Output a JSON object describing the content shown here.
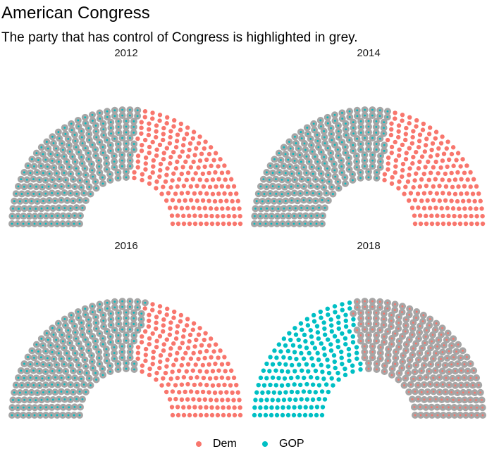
{
  "title": "American Congress",
  "subtitle": "The party that has control of Congress is highlighted in grey.",
  "colors": {
    "Dem": "#F8766D",
    "GOP": "#00BFC4",
    "highlight": "#a6a6a6"
  },
  "chart_data": {
    "type": "parliament",
    "series": [
      {
        "name": "Dem",
        "color": "#F8766D"
      },
      {
        "name": "GOP",
        "color": "#00BFC4"
      }
    ],
    "facets": [
      {
        "label": "2012",
        "seats": {
          "GOP": 234,
          "Dem": 201
        },
        "control": "GOP"
      },
      {
        "label": "2014",
        "seats": {
          "GOP": 247,
          "Dem": 188
        },
        "control": "GOP"
      },
      {
        "label": "2016",
        "seats": {
          "GOP": 241,
          "Dem": 194
        },
        "control": "GOP"
      },
      {
        "label": "2018",
        "seats": {
          "GOP": 199,
          "Dem": 236
        },
        "control": "Dem"
      }
    ],
    "legend": {
      "position": "bottom",
      "items": [
        "Dem",
        "GOP"
      ]
    }
  }
}
